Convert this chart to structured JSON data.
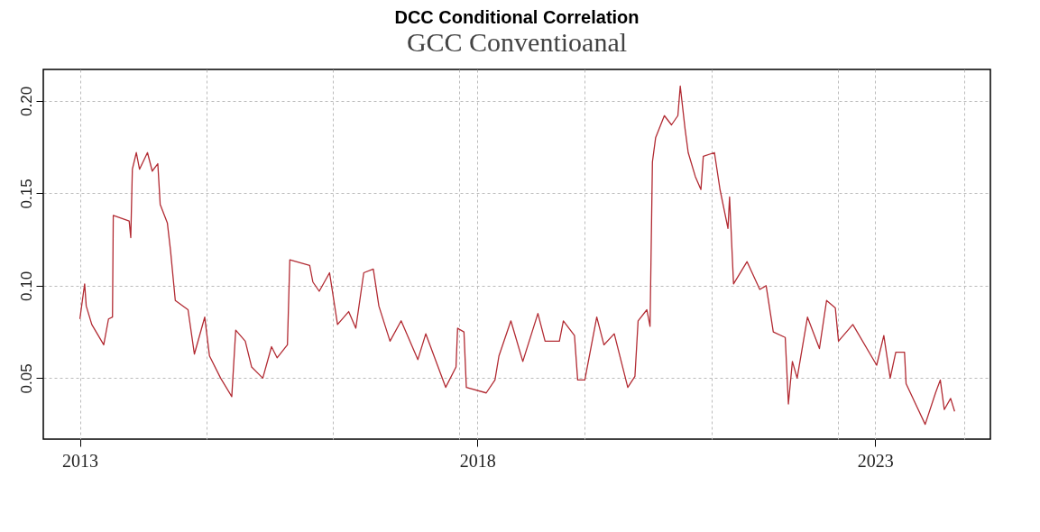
{
  "chart_data": {
    "type": "line",
    "title": "DCC Conditional Correlation",
    "subtitle": "GCC Conventioanal",
    "x": [
      2013.0,
      2013.06,
      2013.08,
      2013.15,
      2013.3,
      2013.36,
      2013.41,
      2013.42,
      2013.62,
      2013.64,
      2013.66,
      2013.71,
      2013.75,
      2013.85,
      2013.91,
      2013.98,
      2014.01,
      2014.1,
      2014.14,
      2014.2,
      2014.36,
      2014.44,
      2014.57,
      2014.63,
      2014.77,
      2014.91,
      2014.96,
      2015.08,
      2015.16,
      2015.3,
      2015.41,
      2015.48,
      2015.61,
      2015.64,
      2015.89,
      2015.93,
      2016.01,
      2016.14,
      2016.24,
      2016.38,
      2016.47,
      2016.57,
      2016.69,
      2016.76,
      2016.9,
      2017.04,
      2017.25,
      2017.35,
      2017.6,
      2017.73,
      2017.75,
      2017.83,
      2017.86,
      2018.11,
      2018.22,
      2018.27,
      2018.42,
      2018.57,
      2018.76,
      2018.85,
      2019.03,
      2019.08,
      2019.22,
      2019.26,
      2019.35,
      2019.5,
      2019.59,
      2019.72,
      2019.89,
      2019.98,
      2020.02,
      2020.13,
      2020.17,
      2020.2,
      2020.24,
      2020.35,
      2020.44,
      2020.52,
      2020.55,
      2020.61,
      2020.65,
      2020.74,
      2020.81,
      2020.84,
      2020.98,
      2021.05,
      2021.15,
      2021.17,
      2021.22,
      2021.39,
      2021.55,
      2021.63,
      2021.72,
      2021.87,
      2021.91,
      2021.96,
      2022.02,
      2022.15,
      2022.3,
      2022.39,
      2022.5,
      2022.54,
      2022.72,
      2023.02,
      2023.11,
      2023.19,
      2023.26,
      2023.37,
      2023.39,
      2023.63,
      2023.76,
      2023.82,
      2023.87,
      2023.95,
      2024.0
    ],
    "series": [
      {
        "color": "#b22b33",
        "values": [
          0.082,
          0.101,
          0.089,
          0.079,
          0.068,
          0.082,
          0.083,
          0.138,
          0.135,
          0.126,
          0.163,
          0.172,
          0.163,
          0.172,
          0.162,
          0.166,
          0.144,
          0.134,
          0.119,
          0.092,
          0.087,
          0.063,
          0.083,
          0.062,
          0.05,
          0.04,
          0.076,
          0.07,
          0.056,
          0.05,
          0.067,
          0.061,
          0.068,
          0.114,
          0.111,
          0.102,
          0.097,
          0.107,
          0.079,
          0.086,
          0.077,
          0.107,
          0.109,
          0.089,
          0.07,
          0.081,
          0.06,
          0.074,
          0.045,
          0.056,
          0.077,
          0.075,
          0.045,
          0.042,
          0.049,
          0.062,
          0.081,
          0.059,
          0.085,
          0.07,
          0.07,
          0.081,
          0.073,
          0.049,
          0.049,
          0.083,
          0.068,
          0.074,
          0.045,
          0.051,
          0.081,
          0.087,
          0.078,
          0.167,
          0.18,
          0.192,
          0.187,
          0.192,
          0.208,
          0.185,
          0.172,
          0.159,
          0.152,
          0.17,
          0.172,
          0.152,
          0.131,
          0.148,
          0.101,
          0.113,
          0.098,
          0.1,
          0.075,
          0.072,
          0.036,
          0.059,
          0.05,
          0.083,
          0.066,
          0.092,
          0.088,
          0.07,
          0.079,
          0.057,
          0.073,
          0.05,
          0.064,
          0.064,
          0.047,
          0.025,
          0.042,
          0.049,
          0.033,
          0.039,
          0.032
        ]
      }
    ],
    "xlim": [
      2012.54,
      2024.45
    ],
    "xticks": [
      2013,
      {
        "value": 2014.59,
        "label": null
      },
      {
        "value": 2016.18,
        "label": null
      },
      {
        "value": 2017.77,
        "label": null
      },
      2018,
      {
        "value": 2019.35,
        "label": null
      },
      {
        "value": 2020.94,
        "label": null
      },
      {
        "value": 2022.53,
        "label": null
      },
      2023,
      {
        "value": 2024.12,
        "label": null
      }
    ],
    "ylim": [
      0.017,
      0.217
    ],
    "yticks": [
      {
        "value": 0.05,
        "label": "0.05"
      },
      {
        "value": 0.1,
        "label": "0.10"
      },
      {
        "value": 0.15,
        "label": "0.15"
      },
      {
        "value": 0.2,
        "label": "0.20"
      }
    ],
    "grid": true,
    "line_style": "solid"
  }
}
